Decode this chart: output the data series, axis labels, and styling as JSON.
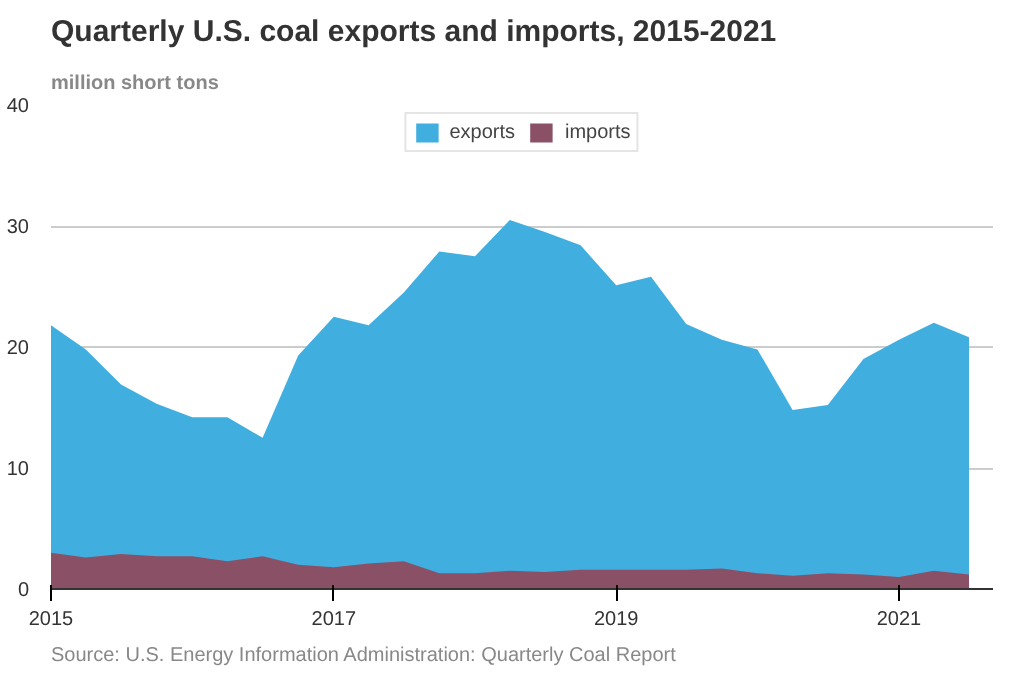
{
  "chart_data": {
    "type": "area",
    "title": "Quarterly U.S. coal exports and imports, 2015-2021",
    "ylabel": "million short tons",
    "x": [
      "2015-01",
      "2015-04",
      "2015-07",
      "2015-10",
      "2016-01",
      "2016-04",
      "2016-07",
      "2016-10",
      "2017-01",
      "2017-04",
      "2017-07",
      "2017-10",
      "2018-01",
      "2018-04",
      "2018-07",
      "2018-10",
      "2019-01",
      "2019-04",
      "2019-07",
      "2019-10",
      "2020-01",
      "2020-04",
      "2020-07",
      "2020-10",
      "2021-01",
      "2021-04",
      "2021-07"
    ],
    "series": [
      {
        "name": "exports",
        "color": "#40afe0",
        "values": [
          21.8,
          19.8,
          16.9,
          15.3,
          14.2,
          14.2,
          12.5,
          19.3,
          22.5,
          21.8,
          24.5,
          27.9,
          27.5,
          30.5,
          29.5,
          28.4,
          25.1,
          25.8,
          21.9,
          20.6,
          19.8,
          14.8,
          15.2,
          19.0,
          20.6,
          22.0,
          20.8
        ]
      },
      {
        "name": "imports",
        "color": "#8a5065",
        "values": [
          3.0,
          2.6,
          2.9,
          2.7,
          2.7,
          2.3,
          2.7,
          2.0,
          1.8,
          2.1,
          2.3,
          1.3,
          1.3,
          1.5,
          1.4,
          1.6,
          1.6,
          1.6,
          1.6,
          1.7,
          1.3,
          1.1,
          1.3,
          1.2,
          1.0,
          1.5,
          1.2
        ]
      }
    ],
    "xlim": [
      "2015-01",
      "2021-09"
    ],
    "xticks": [
      {
        "value": "2015-01",
        "label": "2015"
      },
      {
        "value": "2017-01",
        "label": "2017"
      },
      {
        "value": "2019-01",
        "label": "2019"
      },
      {
        "value": "2021-01",
        "label": "2021"
      }
    ],
    "ylim": [
      0,
      40
    ],
    "yticks": [
      0,
      10,
      20,
      30,
      40
    ],
    "grid": "y",
    "legend": "top",
    "annotations": [
      "Source: U.S. Energy Information Administration: Quarterly Coal Report"
    ]
  }
}
